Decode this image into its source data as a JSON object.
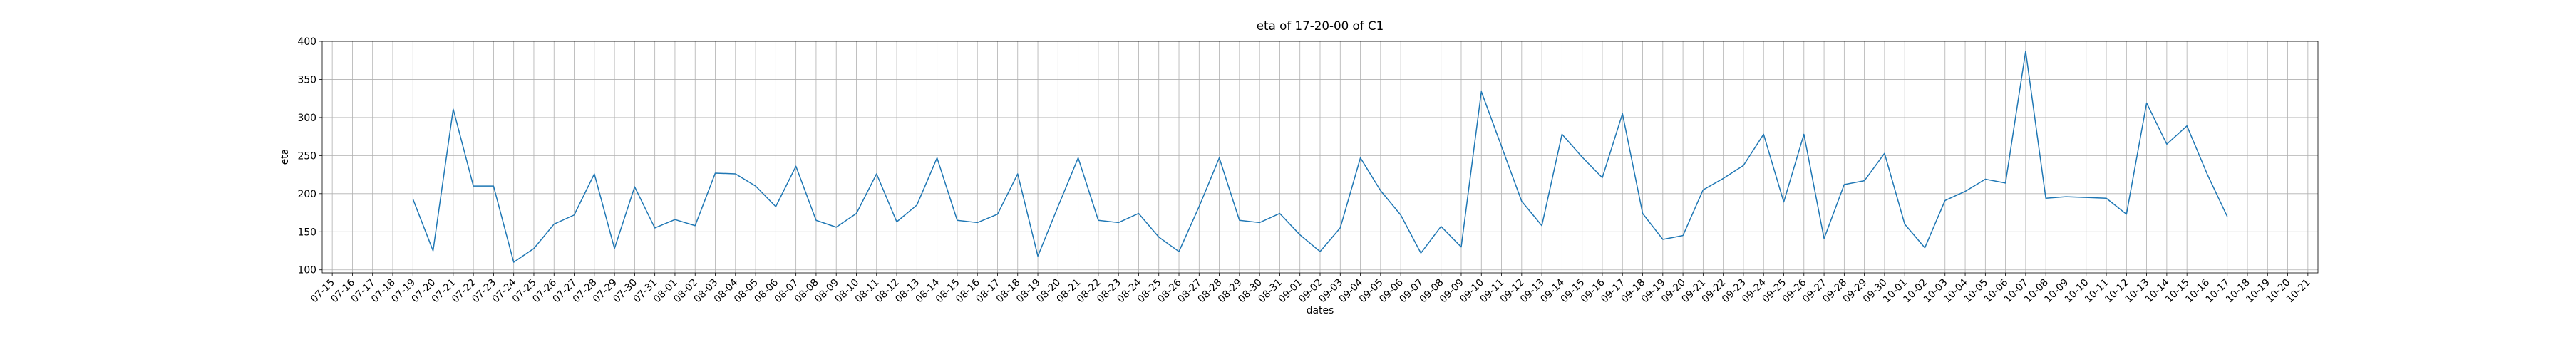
{
  "chart_data": {
    "type": "line",
    "title": "eta of 17-20-00 of C1",
    "x_label": "dates",
    "y_label": "eta",
    "x": [
      "07-19",
      "07-20",
      "07-21",
      "07-22",
      "07-23",
      "07-24",
      "07-25",
      "07-26",
      "07-27",
      "07-28",
      "07-29",
      "07-30",
      "07-31",
      "08-01",
      "08-02",
      "08-03",
      "08-04",
      "08-05",
      "08-06",
      "08-07",
      "08-08",
      "08-09",
      "08-10",
      "08-11",
      "08-12",
      "08-13",
      "08-14",
      "08-15",
      "08-16",
      "08-17",
      "08-18",
      "08-19",
      "08-20",
      "08-21",
      "08-22",
      "08-23",
      "08-24",
      "08-25",
      "08-26",
      "08-27",
      "08-28",
      "08-29",
      "08-30",
      "08-31",
      "09-01",
      "09-02",
      "09-03",
      "09-04",
      "09-05",
      "09-06",
      "09-07",
      "09-08",
      "09-09",
      "09-10",
      "09-11",
      "09-12",
      "09-13",
      "09-14",
      "09-15",
      "09-16",
      "09-17",
      "09-18",
      "09-19",
      "09-20",
      "09-21",
      "09-22",
      "09-23",
      "09-24",
      "09-25",
      "09-26",
      "09-27",
      "09-28",
      "09-29",
      "09-30",
      "10-01",
      "10-02",
      "10-03",
      "10-04",
      "10-05",
      "10-06",
      "10-07",
      "10-08",
      "10-09",
      "10-10",
      "10-11",
      "10-12",
      "10-13",
      "10-14",
      "10-15",
      "10-16",
      "10-17"
    ],
    "series": [
      {
        "color": "#1f77b4",
        "values": [
          193,
          125,
          311,
          210,
          210,
          110,
          128,
          160,
          172,
          226,
          128,
          209,
          155,
          166,
          158,
          227,
          226,
          210,
          183,
          236,
          165,
          156,
          174,
          226,
          163,
          185,
          247,
          165,
          162,
          173,
          226,
          118,
          183,
          247,
          165,
          162,
          174,
          143,
          124,
          183,
          247,
          165,
          162,
          174,
          146,
          124,
          155,
          247,
          204,
          172,
          122,
          157,
          130,
          334,
          262,
          190,
          158,
          278,
          248,
          221,
          305,
          174,
          140,
          145,
          205,
          220,
          237,
          278,
          189,
          278,
          141,
          212,
          217,
          253,
          160,
          129,
          191,
          203,
          219,
          214,
          387,
          194,
          196,
          195,
          194,
          173,
          319,
          265,
          289,
          226,
          170
        ]
      }
    ],
    "xticks": [
      "07-15",
      "07-16",
      "07-17",
      "07-18",
      "07-19",
      "07-20",
      "07-21",
      "07-22",
      "07-23",
      "07-24",
      "07-25",
      "07-26",
      "07-27",
      "07-28",
      "07-29",
      "07-30",
      "07-31",
      "08-01",
      "08-02",
      "08-03",
      "08-04",
      "08-05",
      "08-06",
      "08-07",
      "08-08",
      "08-09",
      "08-10",
      "08-11",
      "08-12",
      "08-13",
      "08-14",
      "08-15",
      "08-16",
      "08-17",
      "08-18",
      "08-19",
      "08-20",
      "08-21",
      "08-22",
      "08-23",
      "08-24",
      "08-25",
      "08-26",
      "08-27",
      "08-28",
      "08-29",
      "08-30",
      "08-31",
      "09-01",
      "09-02",
      "09-03",
      "09-04",
      "09-05",
      "09-06",
      "09-07",
      "09-08",
      "09-09",
      "09-10",
      "09-11",
      "09-12",
      "09-13",
      "09-14",
      "09-15",
      "09-16",
      "09-17",
      "09-18",
      "09-19",
      "09-20",
      "09-21",
      "09-22",
      "09-23",
      "09-24",
      "09-25",
      "09-26",
      "09-27",
      "09-28",
      "09-29",
      "09-30",
      "10-01",
      "10-02",
      "10-03",
      "10-04",
      "10-05",
      "10-06",
      "10-07",
      "10-08",
      "10-09",
      "10-10",
      "10-11",
      "10-12",
      "10-13",
      "10-14",
      "10-15",
      "10-16",
      "10-17",
      "10-18",
      "10-19",
      "10-20",
      "10-21"
    ],
    "ylim": [
      96,
      400
    ],
    "yticks": [
      100,
      150,
      200,
      250,
      300,
      350,
      400
    ],
    "grid": true
  }
}
